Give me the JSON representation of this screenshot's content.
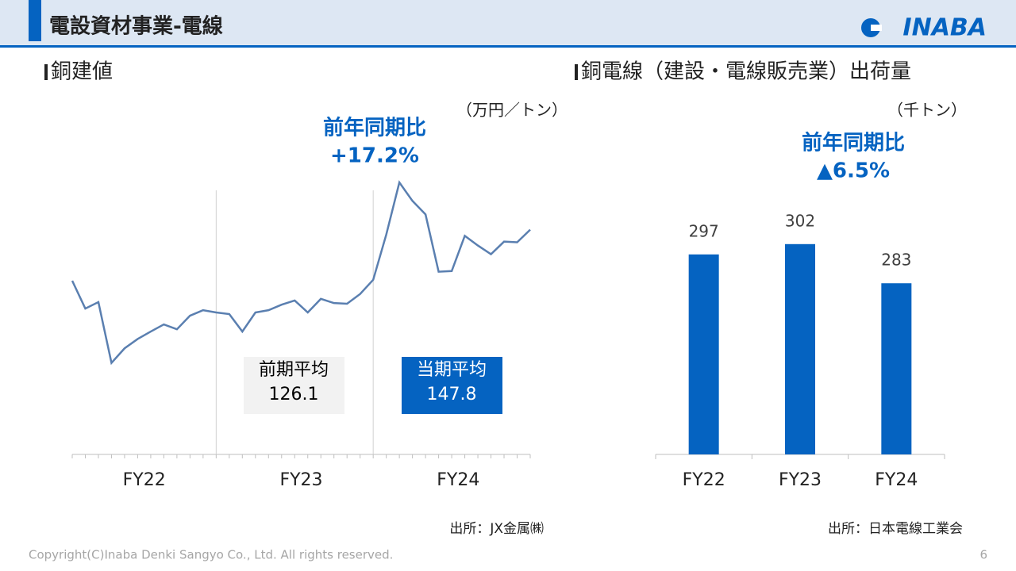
{
  "header": {
    "title": "電設資材事業-電線",
    "logo": "INABA"
  },
  "chart_data": [
    {
      "type": "line",
      "title": "銅建値",
      "unit": "（万円／トン）",
      "annotation": [
        "前年同期比",
        "+17.2%"
      ],
      "groups": [
        "FY22",
        "FY23",
        "FY24"
      ],
      "values": [
        133.7,
        125.1,
        127.1,
        108.3,
        112.8,
        115.7,
        118.0,
        120.2,
        118.7,
        122.9,
        124.6,
        123.9,
        123.4,
        118.0,
        123.9,
        124.6,
        126.3,
        127.6,
        123.9,
        128.1,
        126.8,
        126.6,
        129.6,
        134.0,
        148.0,
        164.1,
        158.4,
        154.2,
        136.5,
        136.7,
        147.6,
        144.6,
        141.9,
        145.8,
        145.6,
        149.5
      ],
      "color": "#5a7fb0",
      "ylim": [
        80,
        170
      ],
      "boxes": [
        {
          "label": "前期平均",
          "value": 126.1,
          "color": "#f2f2f2",
          "text_color": "#000000"
        },
        {
          "label": "当期平均",
          "value": 147.8,
          "color": "#0563c1",
          "text_color": "#ffffff"
        }
      ],
      "source": "出所：JX金属㈱"
    },
    {
      "type": "bar",
      "title": "銅電線（建設・電線販売業）出荷量",
      "unit": "（千トン）",
      "annotation": [
        "前年同期比",
        "▲6.5%"
      ],
      "categories": [
        "FY22",
        "FY23",
        "FY24"
      ],
      "values": [
        297,
        302,
        283
      ],
      "color": "#0563c1",
      "ylim": [
        200,
        330
      ],
      "source": "出所：日本電線工業会"
    }
  ],
  "footer": {
    "copyright": "Copyright(C)Inaba Denki Sangyo Co., Ltd. All rights reserved.",
    "page": 6
  }
}
